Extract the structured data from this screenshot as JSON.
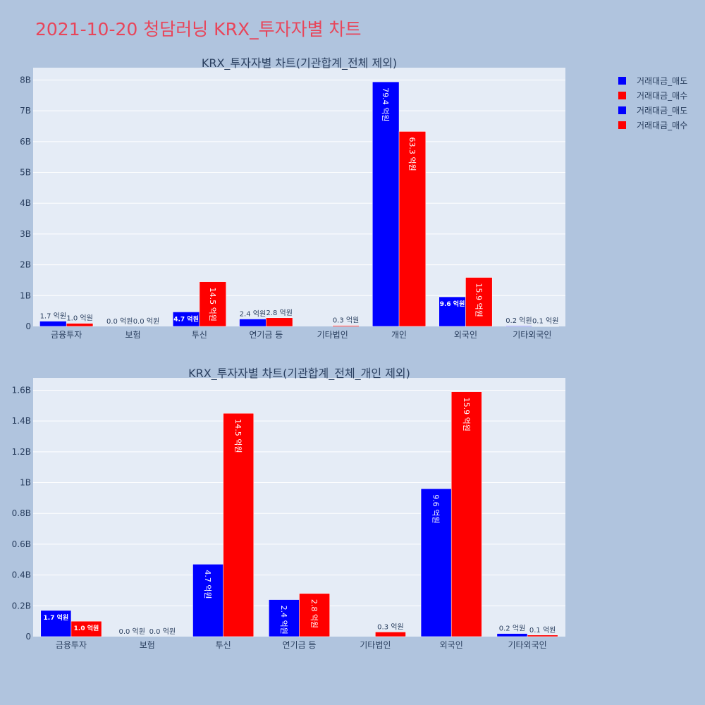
{
  "title": "2021-10-20 청담러닝 KRX_투자자별 차트",
  "colors": {
    "sell": "#0000ff",
    "buy": "#ff0000",
    "plot_bg": "#e5ecf6",
    "page_bg": "#b0c4de",
    "title": "#e8455a"
  },
  "legend": [
    {
      "label": "거래대금_매도",
      "color": "#0000ff"
    },
    {
      "label": "거래대금_매수",
      "color": "#ff0000"
    },
    {
      "label": "거래대금_매도",
      "color": "#0000ff"
    },
    {
      "label": "거래대금_매수",
      "color": "#ff0000"
    }
  ],
  "chart_data": [
    {
      "type": "bar",
      "title": "KRX_투자자별 차트(기관합계_전체 제외)",
      "categories": [
        "금융투자",
        "보험",
        "투신",
        "연기금 등",
        "기타법인",
        "개인",
        "외국인",
        "기타외국인"
      ],
      "series": [
        {
          "name": "거래대금_매도",
          "values": [
            170000000,
            0,
            470000000,
            240000000,
            0,
            7940000000,
            960000000,
            20000000
          ],
          "labels": [
            "1.7 억원",
            "0.0 억원",
            "4.7 억원",
            "2.4 억원",
            "",
            "79.4 억원",
            "9.6 억원",
            "0.2 억원"
          ]
        },
        {
          "name": "거래대금_매수",
          "values": [
            100000000,
            0,
            1450000000,
            280000000,
            30000000,
            6330000000,
            1590000000,
            10000000
          ],
          "labels": [
            "1.0 억원",
            "0.0 억원",
            "14.5 억원",
            "2.8 억원",
            "0.3 억원",
            "63.3 억원",
            "15.9 억원",
            "0.1 억원"
          ]
        }
      ],
      "ylim": [
        0,
        8400000000
      ],
      "yticks": [
        0,
        1000000000,
        2000000000,
        3000000000,
        4000000000,
        5000000000,
        6000000000,
        7000000000,
        8000000000
      ],
      "yticklabels": [
        "0",
        "1B",
        "2B",
        "3B",
        "4B",
        "5B",
        "6B",
        "7B",
        "8B"
      ]
    },
    {
      "type": "bar",
      "title": "KRX_투자자별 차트(기관합계_전체_개인 제외)",
      "categories": [
        "금융투자",
        "보험",
        "투신",
        "연기금 등",
        "기타법인",
        "외국인",
        "기타외국인"
      ],
      "series": [
        {
          "name": "거래대금_매도",
          "values": [
            170000000,
            0,
            470000000,
            240000000,
            0,
            960000000,
            20000000
          ],
          "labels": [
            "1.7 억원",
            "0.0 억원",
            "4.7 억원",
            "2.4 억원",
            "",
            "9.6 억원",
            "0.2 억원"
          ]
        },
        {
          "name": "거래대금_매수",
          "values": [
            100000000,
            0,
            1450000000,
            280000000,
            30000000,
            1590000000,
            10000000
          ],
          "labels": [
            "1.0 억원",
            "0.0 억원",
            "14.5 억원",
            "2.8 억원",
            "0.3 억원",
            "15.9 억원",
            "0.1 억원"
          ]
        }
      ],
      "ylim": [
        0,
        1680000000
      ],
      "yticks": [
        0,
        200000000,
        400000000,
        600000000,
        800000000,
        1000000000,
        1200000000,
        1400000000,
        1600000000
      ],
      "yticklabels": [
        "0",
        "0.2B",
        "0.4B",
        "0.6B",
        "0.8B",
        "1B",
        "1.2B",
        "1.4B",
        "1.6B"
      ]
    }
  ]
}
